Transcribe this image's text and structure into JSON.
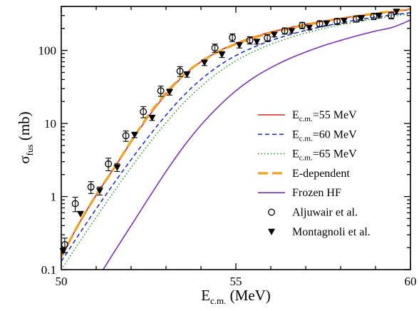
{
  "chart_data": {
    "type": "line",
    "title": "",
    "xlabel": {
      "main": "E",
      "sub": "c.m.",
      "rest": " (MeV)"
    },
    "ylabel": {
      "main": "σ",
      "sub": "fus",
      "rest": " (mb)"
    },
    "xlim": [
      50,
      60
    ],
    "ylim": [
      0.1,
      400
    ],
    "yscale": "log",
    "grid": false,
    "legend_position": "center-right",
    "x_ticks": [
      {
        "value": 50,
        "label": "50"
      },
      {
        "value": 55,
        "label": "55"
      },
      {
        "value": 60,
        "label": "60"
      }
    ],
    "y_ticks": [
      {
        "value": 0.1,
        "label": "0.1"
      },
      {
        "value": 1,
        "label": "1"
      },
      {
        "value": 10,
        "label": "10"
      },
      {
        "value": 100,
        "label": "100"
      }
    ],
    "series": [
      {
        "key": "e55",
        "label_main": "E",
        "label_sub": "c.m.",
        "label_rest": "=55 MeV",
        "color": "#e8201c",
        "style": "solid",
        "x": [
          50,
          50.5,
          51,
          51.5,
          52,
          52.5,
          53,
          53.5,
          54,
          54.5,
          55,
          55.5,
          56,
          56.5,
          57,
          57.5,
          58,
          58.5,
          59,
          59.5,
          60
        ],
        "y": [
          0.15,
          0.42,
          1.05,
          2.4,
          5.6,
          12.5,
          25,
          45,
          70,
          97,
          125,
          152,
          178,
          203,
          228,
          252,
          275,
          297,
          318,
          340,
          362
        ]
      },
      {
        "key": "e60",
        "label_main": "E",
        "label_sub": "c.m.",
        "label_rest": "=60 MeV",
        "color": "#1f2fd6",
        "style": "dashed",
        "x": [
          50,
          50.5,
          51,
          51.5,
          52,
          52.5,
          53,
          53.5,
          54,
          54.5,
          55,
          55.5,
          56,
          56.5,
          57,
          57.5,
          58,
          58.5,
          59,
          59.5,
          60
        ],
        "y": [
          0.13,
          0.3,
          0.68,
          1.5,
          3.2,
          6.6,
          13,
          24,
          40,
          61,
          85,
          110,
          136,
          162,
          188,
          213,
          238,
          262,
          285,
          307,
          328
        ]
      },
      {
        "key": "e65",
        "label_main": "E",
        "label_sub": "c.m.",
        "label_rest": "=65 MeV",
        "color": "#1aa01a",
        "style": "dotted",
        "x": [
          50,
          50.5,
          51,
          51.5,
          52,
          52.5,
          53,
          53.5,
          54,
          54.5,
          55,
          55.5,
          56,
          56.5,
          57,
          57.5,
          58,
          58.5,
          59,
          59.5,
          60
        ],
        "y": [
          0.1,
          0.23,
          0.52,
          1.15,
          2.5,
          5.2,
          10.2,
          19,
          32,
          50,
          72,
          96,
          121,
          147,
          173,
          199,
          224,
          248,
          272,
          295,
          317
        ]
      },
      {
        "key": "edep",
        "label_main": "E-dependent",
        "label_sub": "",
        "label_rest": "",
        "color": "#f5a01a",
        "style": "longdash",
        "x": [
          50,
          50.5,
          51,
          51.5,
          52,
          52.5,
          53,
          53.5,
          54,
          54.5,
          55,
          55.5,
          56,
          56.5,
          57,
          57.5,
          58,
          58.5,
          59,
          59.5,
          60
        ],
        "y": [
          0.15,
          0.42,
          1.05,
          2.4,
          5.7,
          13,
          26,
          46,
          70,
          96,
          122,
          148,
          173,
          198,
          223,
          247,
          272,
          296,
          320,
          344,
          368
        ]
      },
      {
        "key": "frozen",
        "label_main": "Frozen HF",
        "label_sub": "",
        "label_rest": "",
        "color": "#7b2fbf",
        "style": "solid",
        "x": [
          51.2,
          51.5,
          52,
          52.5,
          53,
          53.5,
          54,
          54.5,
          55,
          55.5,
          56,
          56.5,
          57,
          57.5,
          58,
          58.5,
          59,
          59.5,
          60
        ],
        "y": [
          0.1,
          0.17,
          0.4,
          0.95,
          2.2,
          4.8,
          9.5,
          17,
          28,
          42,
          58,
          76,
          95,
          116,
          137,
          160,
          184,
          208,
          260
        ]
      },
      {
        "key": "aljuwair",
        "label_main": "Aljuwair et al.",
        "label_sub": "",
        "label_rest": "",
        "color": "#000000",
        "style": "marker-circle",
        "x": [
          50.1,
          50.4,
          50.85,
          51.35,
          51.85,
          52.35,
          52.85,
          53.4,
          54.4,
          54.9,
          55.4,
          55.9,
          56.4,
          56.9,
          57.4,
          57.9,
          58.45,
          58.95,
          59.45
        ],
        "y": [
          0.22,
          0.8,
          1.35,
          2.8,
          6.8,
          14.5,
          28,
          52,
          108,
          150,
          138,
          148,
          185,
          220,
          232,
          250,
          270,
          292,
          300
        ],
        "err": [
          0.05,
          0.18,
          0.25,
          0.55,
          1.1,
          2.5,
          4.5,
          8,
          14,
          18,
          16,
          16,
          18,
          22,
          22,
          24,
          26,
          28,
          30
        ]
      },
      {
        "key": "montagnoli",
        "label_main": "Montagnoli et al.",
        "label_sub": "",
        "label_rest": "",
        "color": "#000000",
        "style": "marker-triangle",
        "x": [
          50.05,
          50.55,
          51.1,
          51.6,
          52.1,
          52.6,
          53.1,
          53.6,
          54.1,
          54.6,
          55.1,
          55.6,
          56.1,
          56.6,
          57.1,
          57.6,
          58.1,
          58.6,
          59.1,
          59.6
        ],
        "y": [
          0.18,
          0.58,
          1.2,
          2.5,
          7,
          12,
          27,
          47,
          68,
          88,
          118,
          132,
          165,
          185,
          205,
          235,
          255,
          278,
          300,
          340
        ],
        "err": [
          0,
          0,
          0.15,
          0.3,
          0.6,
          1,
          2.5,
          4,
          6,
          8,
          10,
          10,
          12,
          12,
          14,
          16,
          18,
          20,
          22,
          24
        ]
      }
    ]
  }
}
